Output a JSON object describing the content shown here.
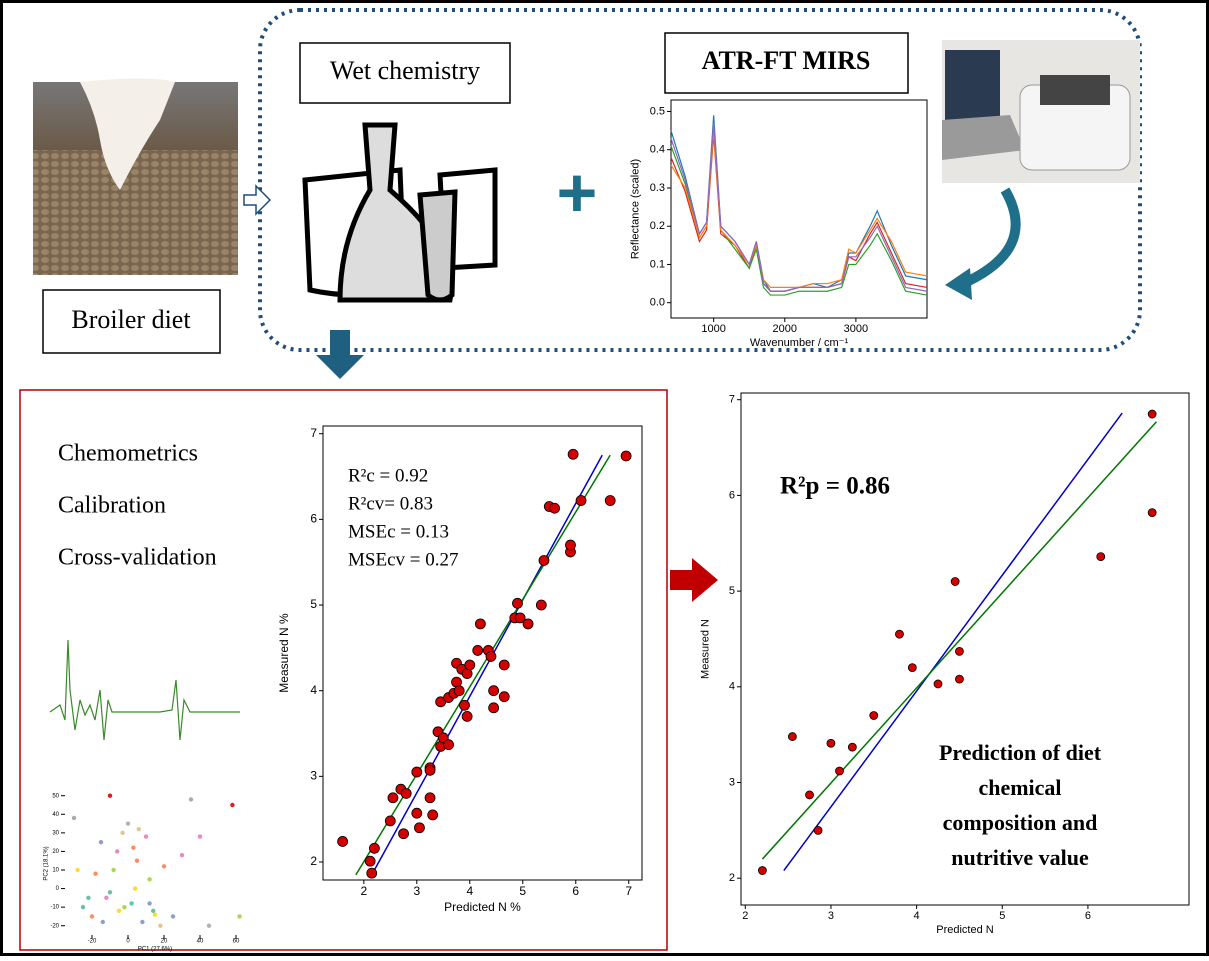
{
  "labels": {
    "wet_chemistry": "Wet chemistry",
    "atr": "ATR-FT MIRS",
    "broiler": "Broiler diet",
    "chemometrics": "Chemometrics",
    "calibration": "Calibration",
    "cross_validation": "Cross-validation"
  },
  "chart_data": [
    {
      "type": "line",
      "xlabel": "Wavenumber / cm⁻¹",
      "ylabel": "Reflectance (scaled)",
      "xlim": [
        400,
        4000
      ],
      "ylim": [
        -0.04,
        0.53
      ],
      "xticks": [
        1000,
        2000,
        3000
      ],
      "yticks": [
        {
          "value": 0,
          "label": "0.0"
        },
        {
          "value": 0.1,
          "label": "0.1"
        },
        {
          "value": 0.2,
          "label": "0.2"
        },
        {
          "value": 0.3,
          "label": "0.3"
        },
        {
          "value": 0.4,
          "label": "0.4"
        },
        {
          "value": 0.5,
          "label": "0.5"
        }
      ],
      "x": [
        400,
        600,
        800,
        900,
        1000,
        1100,
        1300,
        1500,
        1600,
        1700,
        1800,
        2000,
        2200,
        2400,
        2600,
        2800,
        2900,
        3000,
        3200,
        3300,
        3500,
        3700,
        4000
      ],
      "series": [
        {
          "color": "#1f77b4",
          "values": [
            0.45,
            0.33,
            0.18,
            0.21,
            0.49,
            0.2,
            0.16,
            0.1,
            0.16,
            0.06,
            0.03,
            0.03,
            0.04,
            0.05,
            0.04,
            0.06,
            0.13,
            0.13,
            0.2,
            0.24,
            0.15,
            0.07,
            0.06
          ]
        },
        {
          "color": "#d62728",
          "values": [
            0.38,
            0.29,
            0.16,
            0.19,
            0.44,
            0.18,
            0.15,
            0.09,
            0.15,
            0.05,
            0.03,
            0.03,
            0.04,
            0.04,
            0.04,
            0.05,
            0.12,
            0.11,
            0.18,
            0.21,
            0.13,
            0.05,
            0.04
          ]
        },
        {
          "color": "#2ca02c",
          "values": [
            0.41,
            0.31,
            0.17,
            0.2,
            0.46,
            0.19,
            0.14,
            0.09,
            0.14,
            0.04,
            0.02,
            0.02,
            0.03,
            0.03,
            0.03,
            0.04,
            0.1,
            0.1,
            0.15,
            0.18,
            0.11,
            0.03,
            0.02
          ]
        },
        {
          "color": "#ff7f0e",
          "values": [
            0.36,
            0.3,
            0.17,
            0.2,
            0.45,
            0.19,
            0.15,
            0.1,
            0.15,
            0.06,
            0.04,
            0.04,
            0.04,
            0.05,
            0.05,
            0.06,
            0.14,
            0.13,
            0.19,
            0.22,
            0.16,
            0.08,
            0.07
          ]
        },
        {
          "color": "#9467bd",
          "values": [
            0.43,
            0.32,
            0.18,
            0.21,
            0.47,
            0.2,
            0.16,
            0.1,
            0.16,
            0.05,
            0.03,
            0.03,
            0.04,
            0.04,
            0.04,
            0.05,
            0.12,
            0.12,
            0.17,
            0.2,
            0.12,
            0.04,
            0.03
          ]
        }
      ]
    },
    {
      "type": "scatter",
      "xlabel": "Predicted N %",
      "ylabel": "Measured N %",
      "xlim": [
        1.23,
        7.25
      ],
      "ylim": [
        1.79,
        7.09
      ],
      "xticks": [
        2,
        3,
        4,
        5,
        6,
        7
      ],
      "yticks": [
        2,
        3,
        4,
        5,
        6,
        7
      ],
      "color": "#d40000",
      "annotations": [
        "R²c = 0.92",
        "R²cv= 0.83",
        "MSEc = 0.13",
        "MSEcv = 0.27"
      ],
      "x": [
        1.6,
        2.15,
        2.12,
        2.2,
        2.5,
        2.55,
        2.7,
        2.75,
        2.8,
        3.0,
        3.0,
        3.05,
        3.25,
        3.25,
        3.25,
        3.3,
        3.4,
        3.45,
        3.5,
        3.6,
        3.45,
        3.6,
        3.7,
        3.75,
        3.75,
        3.8,
        3.85,
        3.9,
        3.95,
        3.95,
        4.0,
        4.15,
        4.35,
        4.4,
        4.2,
        4.45,
        4.45,
        4.65,
        4.65,
        4.85,
        4.9,
        4.95,
        5.1,
        5.35,
        5.4,
        5.5,
        5.6,
        5.9,
        5.9,
        5.95,
        6.1,
        6.65,
        6.95
      ],
      "values": [
        2.24,
        1.87,
        2.01,
        2.16,
        2.48,
        2.75,
        2.85,
        2.33,
        2.8,
        3.05,
        2.57,
        2.4,
        2.75,
        3.1,
        3.07,
        2.55,
        3.52,
        3.35,
        3.45,
        3.37,
        3.87,
        3.92,
        3.97,
        4.32,
        4.1,
        4.0,
        4.25,
        3.83,
        3.7,
        4.2,
        4.3,
        4.47,
        4.47,
        4.4,
        4.78,
        4.0,
        3.8,
        4.3,
        3.93,
        4.85,
        5.02,
        4.85,
        4.78,
        5.0,
        5.52,
        6.15,
        6.13,
        5.62,
        5.7,
        6.76,
        6.22,
        6.22,
        6.74
      ],
      "fit_lines": [
        {
          "color": "#0000cc",
          "x": [
            2.15,
            6.5
          ],
          "values": [
            1.85,
            6.75
          ]
        },
        {
          "color": "#007700",
          "x": [
            1.85,
            6.65
          ],
          "values": [
            1.85,
            6.75
          ]
        }
      ]
    },
    {
      "type": "scatter",
      "xlabel": "Predicted N",
      "ylabel": "Measured N",
      "xlim": [
        1.95,
        7.18
      ],
      "ylim": [
        1.72,
        7.07
      ],
      "xticks": [
        2,
        3,
        4,
        5,
        6
      ],
      "yticks": [
        2,
        3,
        4,
        5,
        6,
        7
      ],
      "color": "#d40000",
      "annotations": [
        "R²p = 0.86",
        "Prediction of diet",
        "chemical",
        "composition and",
        "nutritive value"
      ],
      "x": [
        2.2,
        2.55,
        2.75,
        2.85,
        3.0,
        3.1,
        3.25,
        3.5,
        3.8,
        3.95,
        4.25,
        4.45,
        4.5,
        4.5,
        6.15,
        6.75,
        6.75
      ],
      "values": [
        2.08,
        3.48,
        2.87,
        2.5,
        3.41,
        3.12,
        3.37,
        3.7,
        4.55,
        4.2,
        4.03,
        5.1,
        4.37,
        4.08,
        5.36,
        6.85,
        5.82
      ],
      "fit_lines": [
        {
          "color": "#0000cc",
          "x": [
            2.45,
            6.4
          ],
          "values": [
            2.08,
            6.86
          ]
        },
        {
          "color": "#007700",
          "x": [
            2.2,
            6.8
          ],
          "values": [
            2.2,
            6.77
          ]
        }
      ]
    },
    {
      "type": "scatter",
      "xlabel": "PC1 (27.6%)",
      "ylabel": "PC2 (18.1%)",
      "xlim": [
        -35,
        65
      ],
      "ylim": [
        -25,
        52
      ],
      "xticks": [
        -20,
        0,
        20,
        40,
        60
      ],
      "yticks": [
        -20,
        -10,
        0,
        10,
        20,
        30,
        40,
        50
      ],
      "x": [
        -30,
        -25,
        -20,
        -15,
        -12,
        -10,
        -8,
        -5,
        -3,
        0,
        2,
        5,
        8,
        10,
        12,
        15,
        18,
        -22,
        -18,
        -14,
        -6,
        -2,
        4,
        6,
        14,
        20,
        25,
        30,
        35,
        45,
        58,
        62,
        -28,
        -10,
        3,
        12,
        40
      ],
      "values": [
        38,
        -10,
        -15,
        25,
        -5,
        50,
        10,
        -12,
        30,
        35,
        -8,
        15,
        -18,
        28,
        5,
        -14,
        -20,
        -5,
        8,
        -18,
        20,
        -10,
        0,
        32,
        -12,
        12,
        -15,
        18,
        48,
        -20,
        45,
        -15,
        10,
        -2,
        22,
        -8,
        28
      ],
      "colors": [
        "#aaaaaa",
        "#66c2a5",
        "#fc8d62",
        "#8da0cb",
        "#e78ac3",
        "#e41a1c",
        "#a6d854",
        "#ffd92f",
        "#e5c494",
        "#b3b3b3",
        "#66c2a5",
        "#fc8d62",
        "#8da0cb",
        "#e78ac3",
        "#a6d854",
        "#ffd92f",
        "#e5c494",
        "#66c2a5",
        "#fc8d62",
        "#8da0cb",
        "#e78ac3",
        "#a6d854",
        "#ffd92f",
        "#e5c494",
        "#66c2a5",
        "#fc8d62",
        "#8da0cb",
        "#e78ac3",
        "#aaaaaa",
        "#b3b3b3",
        "#e41a1c",
        "#a6d854",
        "#ffd92f",
        "#66c2a5",
        "#fc8d62",
        "#8da0cb",
        "#e78ac3"
      ]
    }
  ]
}
